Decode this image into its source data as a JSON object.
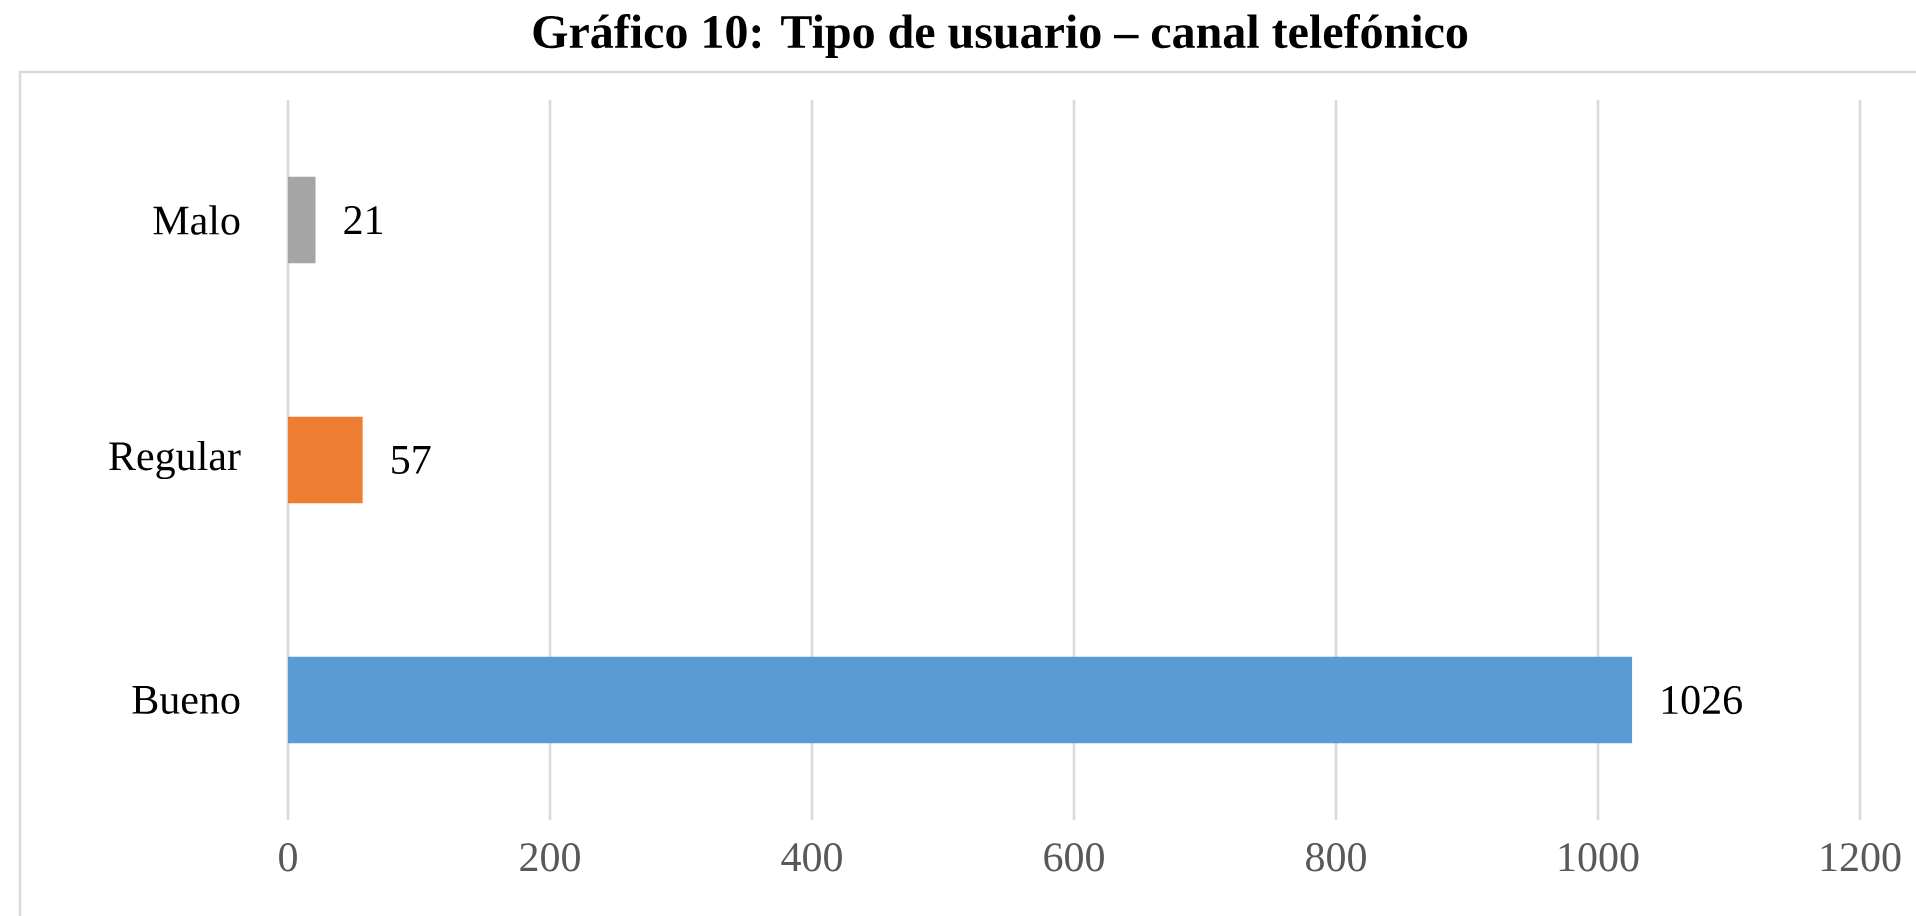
{
  "chart_data": {
    "type": "bar",
    "orientation": "horizontal",
    "title": "Gráfico 10: Tipo de usuario – canal telefónico",
    "categories": [
      "Malo",
      "Regular",
      "Bueno"
    ],
    "values": [
      21,
      57,
      1026
    ],
    "colors": [
      "#a5a5a5",
      "#ed7d31",
      "#5b9bd5"
    ],
    "xlim": [
      0,
      1200
    ],
    "xticks": [
      0,
      200,
      400,
      600,
      800,
      1000,
      1200
    ],
    "grid": "x",
    "data_labels": true
  }
}
